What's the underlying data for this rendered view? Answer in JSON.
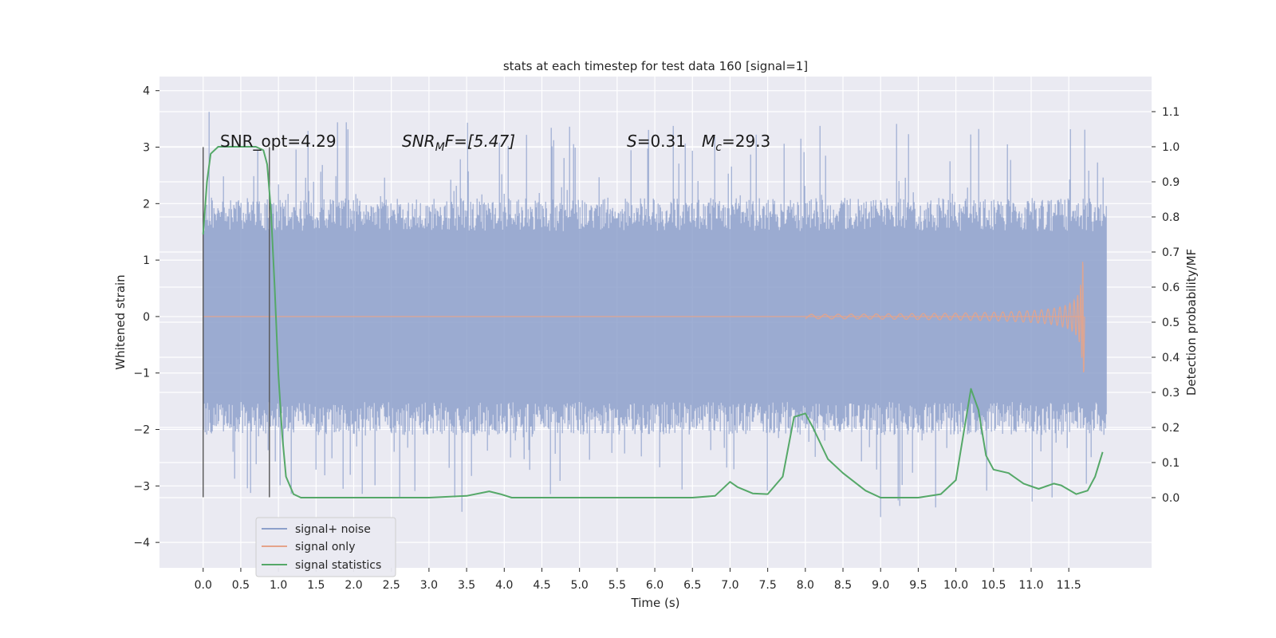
{
  "chart_data": {
    "type": "line",
    "title": "stats at each timestep for test data 160 [signal=1]",
    "xlabel": "Time (s)",
    "ylabel": "Whitened strain",
    "ylabel_right": "Detection probability/MF",
    "xlim": [
      -0.58,
      12.6
    ],
    "ylim": [
      -4.45,
      4.25
    ],
    "ylim_right": [
      -0.2,
      1.2
    ],
    "x_ticks": [
      "0.0",
      "0.5",
      "1.0",
      "1.5",
      "2.0",
      "2.5",
      "3.0",
      "3.5",
      "4.0",
      "4.5",
      "5.0",
      "5.5",
      "6.0",
      "6.5",
      "7.0",
      "7.5",
      "8.0",
      "8.5",
      "9.0",
      "9.5",
      "10.0",
      "10.5",
      "11.0",
      "11.5"
    ],
    "y_ticks": [
      "4",
      "3",
      "2",
      "1",
      "0",
      "−1",
      "−2",
      "−3",
      "−4"
    ],
    "y_ticks_right": [
      "1.1",
      "1.0",
      "0.9",
      "0.8",
      "0.7",
      "0.6",
      "0.5",
      "0.4",
      "0.3",
      "0.2",
      "0.1",
      "0.0"
    ],
    "grid": true,
    "legend_position": "lower-left",
    "series": [
      {
        "name": "signal+ noise",
        "color": "#8da0cb",
        "axis": "left",
        "x_range": [
          0.0,
          12.0
        ],
        "envelope_upper": 2.1,
        "envelope_lower": -2.1,
        "peak_max": 3.85,
        "peak_min": -3.6
      },
      {
        "name": "signal only",
        "color": "#e5a48a",
        "axis": "left",
        "chirp_end_time": 11.7,
        "chirp_peak_amplitude": 1.0
      },
      {
        "name": "signal statistics",
        "color": "#55a868",
        "axis": "right",
        "points": [
          [
            0.0,
            0.75
          ],
          [
            0.05,
            0.9
          ],
          [
            0.1,
            0.98
          ],
          [
            0.2,
            1.0
          ],
          [
            0.3,
            1.0
          ],
          [
            0.5,
            1.0
          ],
          [
            0.7,
            1.0
          ],
          [
            0.8,
            0.99
          ],
          [
            0.85,
            0.95
          ],
          [
            0.9,
            0.82
          ],
          [
            0.95,
            0.6
          ],
          [
            1.0,
            0.35
          ],
          [
            1.05,
            0.18
          ],
          [
            1.1,
            0.06
          ],
          [
            1.2,
            0.01
          ],
          [
            1.3,
            0.0
          ],
          [
            2.0,
            0.0
          ],
          [
            3.0,
            0.0
          ],
          [
            3.5,
            0.005
          ],
          [
            3.8,
            0.018
          ],
          [
            3.95,
            0.01
          ],
          [
            4.1,
            0.0
          ],
          [
            5.0,
            0.0
          ],
          [
            5.5,
            0.0
          ],
          [
            6.5,
            0.0
          ],
          [
            6.8,
            0.005
          ],
          [
            7.0,
            0.045
          ],
          [
            7.1,
            0.03
          ],
          [
            7.3,
            0.012
          ],
          [
            7.5,
            0.01
          ],
          [
            7.7,
            0.06
          ],
          [
            7.85,
            0.23
          ],
          [
            8.0,
            0.24
          ],
          [
            8.1,
            0.2
          ],
          [
            8.3,
            0.11
          ],
          [
            8.5,
            0.07
          ],
          [
            8.8,
            0.02
          ],
          [
            9.0,
            0.0
          ],
          [
            9.5,
            0.0
          ],
          [
            9.8,
            0.01
          ],
          [
            10.0,
            0.05
          ],
          [
            10.1,
            0.18
          ],
          [
            10.2,
            0.31
          ],
          [
            10.3,
            0.25
          ],
          [
            10.4,
            0.12
          ],
          [
            10.5,
            0.08
          ],
          [
            10.7,
            0.07
          ],
          [
            10.9,
            0.04
          ],
          [
            11.1,
            0.025
          ],
          [
            11.3,
            0.04
          ],
          [
            11.4,
            0.035
          ],
          [
            11.6,
            0.01
          ],
          [
            11.75,
            0.02
          ],
          [
            11.85,
            0.06
          ],
          [
            11.95,
            0.13
          ]
        ]
      }
    ],
    "vlines": [
      0.0,
      0.88
    ],
    "annotations": {
      "snr_opt": "SNR_opt=4.29",
      "snr_mf_base": "SNR",
      "snr_mf_sub": "M",
      "snr_mf_rest": "F=[5.47]",
      "s_label": "S",
      "s_value": "=0.31",
      "mc_base": "M",
      "mc_sub": "c",
      "mc_value": "=29.3"
    }
  }
}
